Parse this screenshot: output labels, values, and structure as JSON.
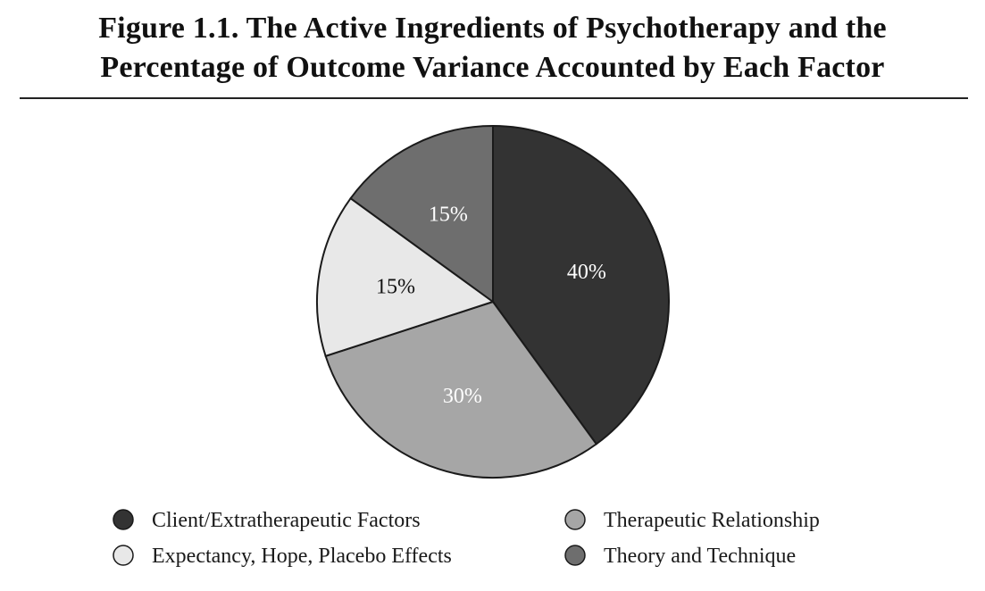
{
  "title": {
    "line1": "Figure 1.1.  The Active Ingredients of Psychotherapy and the",
    "line2": "Percentage of Outcome Variance Accounted by Each Factor"
  },
  "chart_data": {
    "type": "pie",
    "slices": [
      {
        "label": "Client/Extratherapeutic Factors",
        "value": 40,
        "display": "40%",
        "color": "#333333",
        "label_color": "#ffffff"
      },
      {
        "label": "Therapeutic Relationship",
        "value": 30,
        "display": "30%",
        "color": "#a6a6a6",
        "label_color": "#ffffff"
      },
      {
        "label": "Expectancy, Hope, Placebo Effects",
        "value": 15,
        "display": "15%",
        "color": "#e8e8e8",
        "label_color": "#111111"
      },
      {
        "label": "Theory and Technique",
        "value": 15,
        "display": "15%",
        "color": "#6e6e6e",
        "label_color": "#ffffff"
      }
    ],
    "legend": {
      "placement": "bottom",
      "order": [
        0,
        1,
        2,
        3
      ]
    }
  }
}
